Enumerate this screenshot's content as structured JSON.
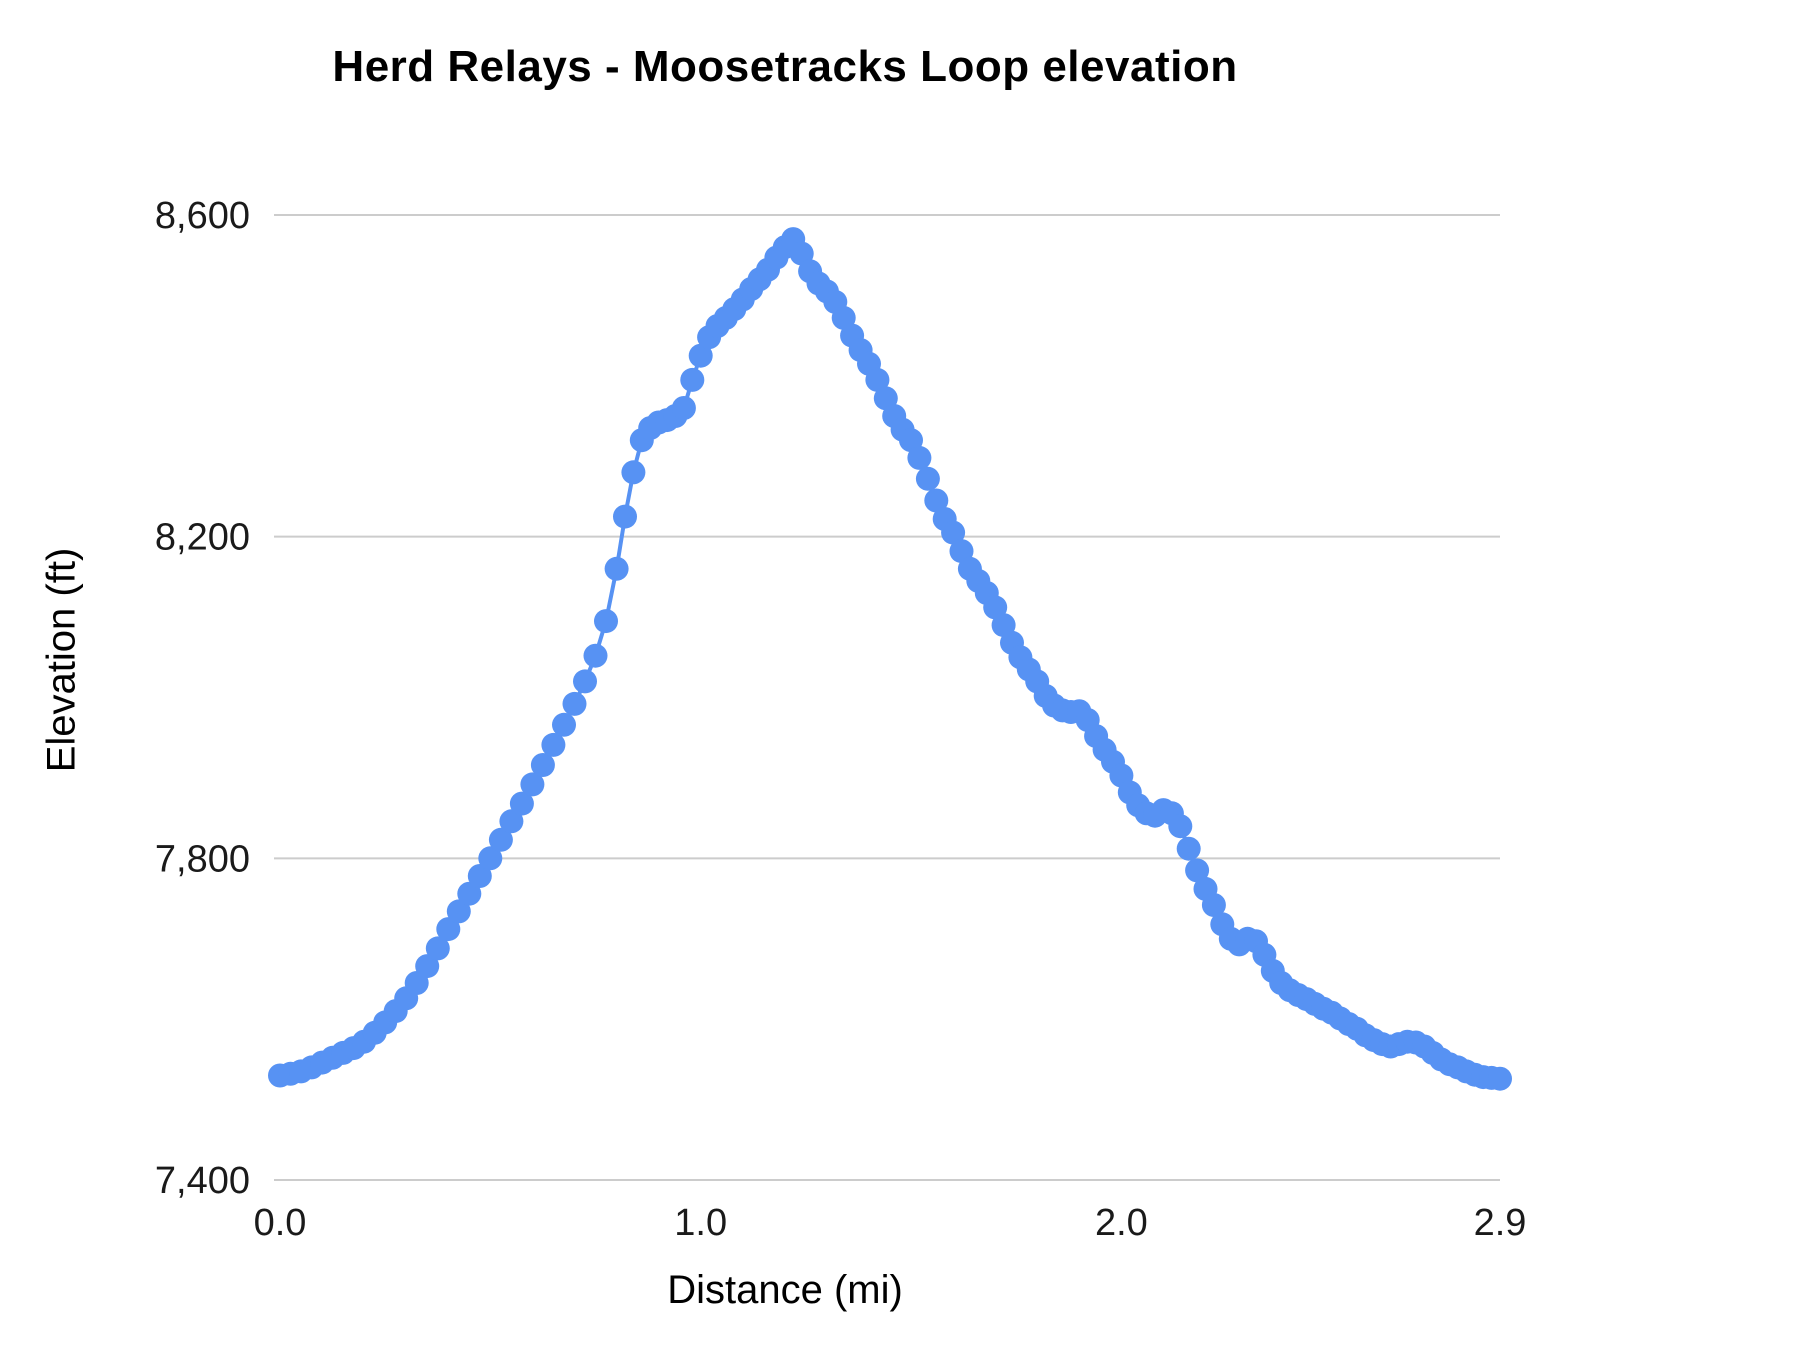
{
  "title": "Herd Relays - Moosetracks Loop elevation",
  "chart_data": {
    "type": "line",
    "title": "Herd Relays - Moosetracks Loop elevation",
    "xlabel": "Distance (mi)",
    "ylabel": "Elevation (ft)",
    "xlim": [
      0,
      2.9
    ],
    "ylim": [
      7400,
      8600
    ],
    "grid": "horizontal",
    "legend": "none",
    "series_color": "#5792f3",
    "gridline_color": "#cccccc",
    "tick_color": "#1a1a1a",
    "background": "#ffffff",
    "marker": "circle",
    "xticks": [
      {
        "v": 0.0,
        "label": "0.0"
      },
      {
        "v": 1.0,
        "label": "1.0"
      },
      {
        "v": 2.0,
        "label": "2.0"
      },
      {
        "v": 2.9,
        "label": "2.9"
      }
    ],
    "yticks": [
      {
        "v": 7400,
        "label": "7,400"
      },
      {
        "v": 7800,
        "label": "7,800"
      },
      {
        "v": 8200,
        "label": "8,200"
      },
      {
        "v": 8600,
        "label": "8,600"
      }
    ],
    "points": [
      [
        0.0,
        7530
      ],
      [
        0.025,
        7532
      ],
      [
        0.05,
        7535
      ],
      [
        0.075,
        7540
      ],
      [
        0.1,
        7546
      ],
      [
        0.125,
        7552
      ],
      [
        0.15,
        7558
      ],
      [
        0.175,
        7564
      ],
      [
        0.2,
        7572
      ],
      [
        0.225,
        7583
      ],
      [
        0.25,
        7596
      ],
      [
        0.275,
        7610
      ],
      [
        0.3,
        7626
      ],
      [
        0.325,
        7645
      ],
      [
        0.35,
        7666
      ],
      [
        0.375,
        7688
      ],
      [
        0.4,
        7712
      ],
      [
        0.425,
        7734
      ],
      [
        0.45,
        7756
      ],
      [
        0.475,
        7778
      ],
      [
        0.5,
        7800
      ],
      [
        0.525,
        7823
      ],
      [
        0.55,
        7846
      ],
      [
        0.575,
        7868
      ],
      [
        0.6,
        7892
      ],
      [
        0.625,
        7916
      ],
      [
        0.65,
        7941
      ],
      [
        0.675,
        7966
      ],
      [
        0.7,
        7992
      ],
      [
        0.725,
        8020
      ],
      [
        0.75,
        8052
      ],
      [
        0.775,
        8095
      ],
      [
        0.8,
        8160
      ],
      [
        0.82,
        8225
      ],
      [
        0.84,
        8280
      ],
      [
        0.86,
        8320
      ],
      [
        0.88,
        8335
      ],
      [
        0.9,
        8342
      ],
      [
        0.92,
        8345
      ],
      [
        0.94,
        8350
      ],
      [
        0.96,
        8360
      ],
      [
        0.98,
        8395
      ],
      [
        1.0,
        8425
      ],
      [
        1.02,
        8448
      ],
      [
        1.04,
        8462
      ],
      [
        1.06,
        8472
      ],
      [
        1.08,
        8483
      ],
      [
        1.1,
        8495
      ],
      [
        1.12,
        8508
      ],
      [
        1.14,
        8520
      ],
      [
        1.16,
        8532
      ],
      [
        1.18,
        8547
      ],
      [
        1.2,
        8560
      ],
      [
        1.22,
        8570
      ],
      [
        1.24,
        8552
      ],
      [
        1.26,
        8530
      ],
      [
        1.28,
        8515
      ],
      [
        1.3,
        8505
      ],
      [
        1.32,
        8492
      ],
      [
        1.34,
        8472
      ],
      [
        1.36,
        8450
      ],
      [
        1.38,
        8432
      ],
      [
        1.4,
        8415
      ],
      [
        1.42,
        8395
      ],
      [
        1.44,
        8372
      ],
      [
        1.46,
        8350
      ],
      [
        1.48,
        8333
      ],
      [
        1.5,
        8320
      ],
      [
        1.52,
        8298
      ],
      [
        1.54,
        8272
      ],
      [
        1.56,
        8245
      ],
      [
        1.58,
        8222
      ],
      [
        1.6,
        8205
      ],
      [
        1.62,
        8182
      ],
      [
        1.64,
        8160
      ],
      [
        1.66,
        8145
      ],
      [
        1.68,
        8130
      ],
      [
        1.7,
        8112
      ],
      [
        1.72,
        8090
      ],
      [
        1.74,
        8068
      ],
      [
        1.76,
        8050
      ],
      [
        1.78,
        8035
      ],
      [
        1.8,
        8020
      ],
      [
        1.82,
        8002
      ],
      [
        1.84,
        7990
      ],
      [
        1.86,
        7984
      ],
      [
        1.88,
        7982
      ],
      [
        1.9,
        7983
      ],
      [
        1.92,
        7972
      ],
      [
        1.94,
        7952
      ],
      [
        1.96,
        7935
      ],
      [
        1.98,
        7920
      ],
      [
        2.0,
        7903
      ],
      [
        2.02,
        7882
      ],
      [
        2.04,
        7866
      ],
      [
        2.06,
        7856
      ],
      [
        2.08,
        7853
      ],
      [
        2.1,
        7860
      ],
      [
        2.12,
        7856
      ],
      [
        2.14,
        7840
      ],
      [
        2.16,
        7812
      ],
      [
        2.18,
        7785
      ],
      [
        2.2,
        7762
      ],
      [
        2.22,
        7742
      ],
      [
        2.24,
        7718
      ],
      [
        2.26,
        7700
      ],
      [
        2.28,
        7693
      ],
      [
        2.3,
        7700
      ],
      [
        2.32,
        7697
      ],
      [
        2.34,
        7680
      ],
      [
        2.36,
        7660
      ],
      [
        2.38,
        7645
      ],
      [
        2.4,
        7636
      ],
      [
        2.42,
        7630
      ],
      [
        2.44,
        7625
      ],
      [
        2.46,
        7619
      ],
      [
        2.48,
        7613
      ],
      [
        2.5,
        7608
      ],
      [
        2.52,
        7601
      ],
      [
        2.54,
        7594
      ],
      [
        2.56,
        7588
      ],
      [
        2.58,
        7580
      ],
      [
        2.6,
        7574
      ],
      [
        2.62,
        7569
      ],
      [
        2.64,
        7566
      ],
      [
        2.66,
        7569
      ],
      [
        2.68,
        7572
      ],
      [
        2.7,
        7571
      ],
      [
        2.72,
        7566
      ],
      [
        2.74,
        7558
      ],
      [
        2.76,
        7550
      ],
      [
        2.78,
        7544
      ],
      [
        2.8,
        7540
      ],
      [
        2.82,
        7535
      ],
      [
        2.84,
        7531
      ],
      [
        2.86,
        7528
      ],
      [
        2.88,
        7527
      ],
      [
        2.9,
        7526
      ]
    ]
  }
}
